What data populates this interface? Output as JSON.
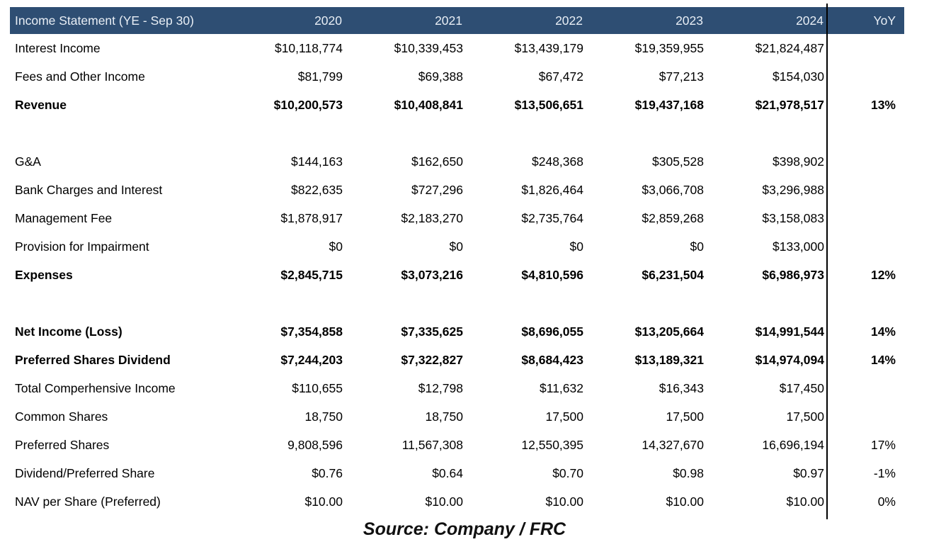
{
  "header": {
    "title": "Income Statement (YE - Sep 30)",
    "columns": [
      "2020",
      "2021",
      "2022",
      "2023",
      "2024",
      "YoY"
    ]
  },
  "table": {
    "rows": [
      {
        "label": "Interest Income",
        "bold": false,
        "values": [
          "$10,118,774",
          "$10,339,453",
          "$13,439,179",
          "$19,359,955",
          "$21,824,487"
        ],
        "yoy": ""
      },
      {
        "label": "Fees and Other Income",
        "bold": false,
        "values": [
          "$81,799",
          "$69,388",
          "$67,472",
          "$77,213",
          "$154,030"
        ],
        "yoy": ""
      },
      {
        "label": "Revenue",
        "bold": true,
        "values": [
          "$10,200,573",
          "$10,408,841",
          "$13,506,651",
          "$19,437,168",
          "$21,978,517"
        ],
        "yoy": "13%"
      },
      {
        "spacer": true
      },
      {
        "label": "G&A",
        "bold": false,
        "values": [
          "$144,163",
          "$162,650",
          "$248,368",
          "$305,528",
          "$398,902"
        ],
        "yoy": ""
      },
      {
        "label": "Bank Charges and Interest",
        "bold": false,
        "values": [
          "$822,635",
          "$727,296",
          "$1,826,464",
          "$3,066,708",
          "$3,296,988"
        ],
        "yoy": ""
      },
      {
        "label": "Management Fee",
        "bold": false,
        "values": [
          "$1,878,917",
          "$2,183,270",
          "$2,735,764",
          "$2,859,268",
          "$3,158,083"
        ],
        "yoy": ""
      },
      {
        "label": "Provision for Impairment",
        "bold": false,
        "values": [
          "$0",
          "$0",
          "$0",
          "$0",
          "$133,000"
        ],
        "yoy": ""
      },
      {
        "label": "Expenses",
        "bold": true,
        "values": [
          "$2,845,715",
          "$3,073,216",
          "$4,810,596",
          "$6,231,504",
          "$6,986,973"
        ],
        "yoy": "12%"
      },
      {
        "spacer": true
      },
      {
        "label": "Net Income (Loss)",
        "bold": true,
        "values": [
          "$7,354,858",
          "$7,335,625",
          "$8,696,055",
          "$13,205,664",
          "$14,991,544"
        ],
        "yoy": "14%"
      },
      {
        "label": "Preferred Shares Dividend",
        "bold": true,
        "values": [
          "$7,244,203",
          "$7,322,827",
          "$8,684,423",
          "$13,189,321",
          "$14,974,094"
        ],
        "yoy": "14%"
      },
      {
        "label": "Total Comperhensive Income",
        "bold": false,
        "values": [
          "$110,655",
          "$12,798",
          "$11,632",
          "$16,343",
          "$17,450"
        ],
        "yoy": ""
      },
      {
        "label": "Common Shares",
        "bold": false,
        "values": [
          "18,750",
          "18,750",
          "17,500",
          "17,500",
          "17,500"
        ],
        "yoy": ""
      },
      {
        "label": "Preferred Shares",
        "bold": false,
        "values": [
          "9,808,596",
          "11,567,308",
          "12,550,395",
          "14,327,670",
          "16,696,194"
        ],
        "yoy": "17%"
      },
      {
        "label": "Dividend/Preferred Share",
        "bold": false,
        "values": [
          "$0.76",
          "$0.64",
          "$0.70",
          "$0.98",
          "$0.97"
        ],
        "yoy": "-1%"
      },
      {
        "label": "NAV per Share (Preferred)",
        "bold": false,
        "values": [
          "$10.00",
          "$10.00",
          "$10.00",
          "$10.00",
          "$10.00"
        ],
        "yoy": "0%"
      }
    ]
  },
  "footer": {
    "source": "Source: Company / FRC"
  },
  "colors": {
    "header_bg": "#2E4E73",
    "header_text": "#E8EEF5",
    "divider": "#000000",
    "body_text": "#000000"
  }
}
